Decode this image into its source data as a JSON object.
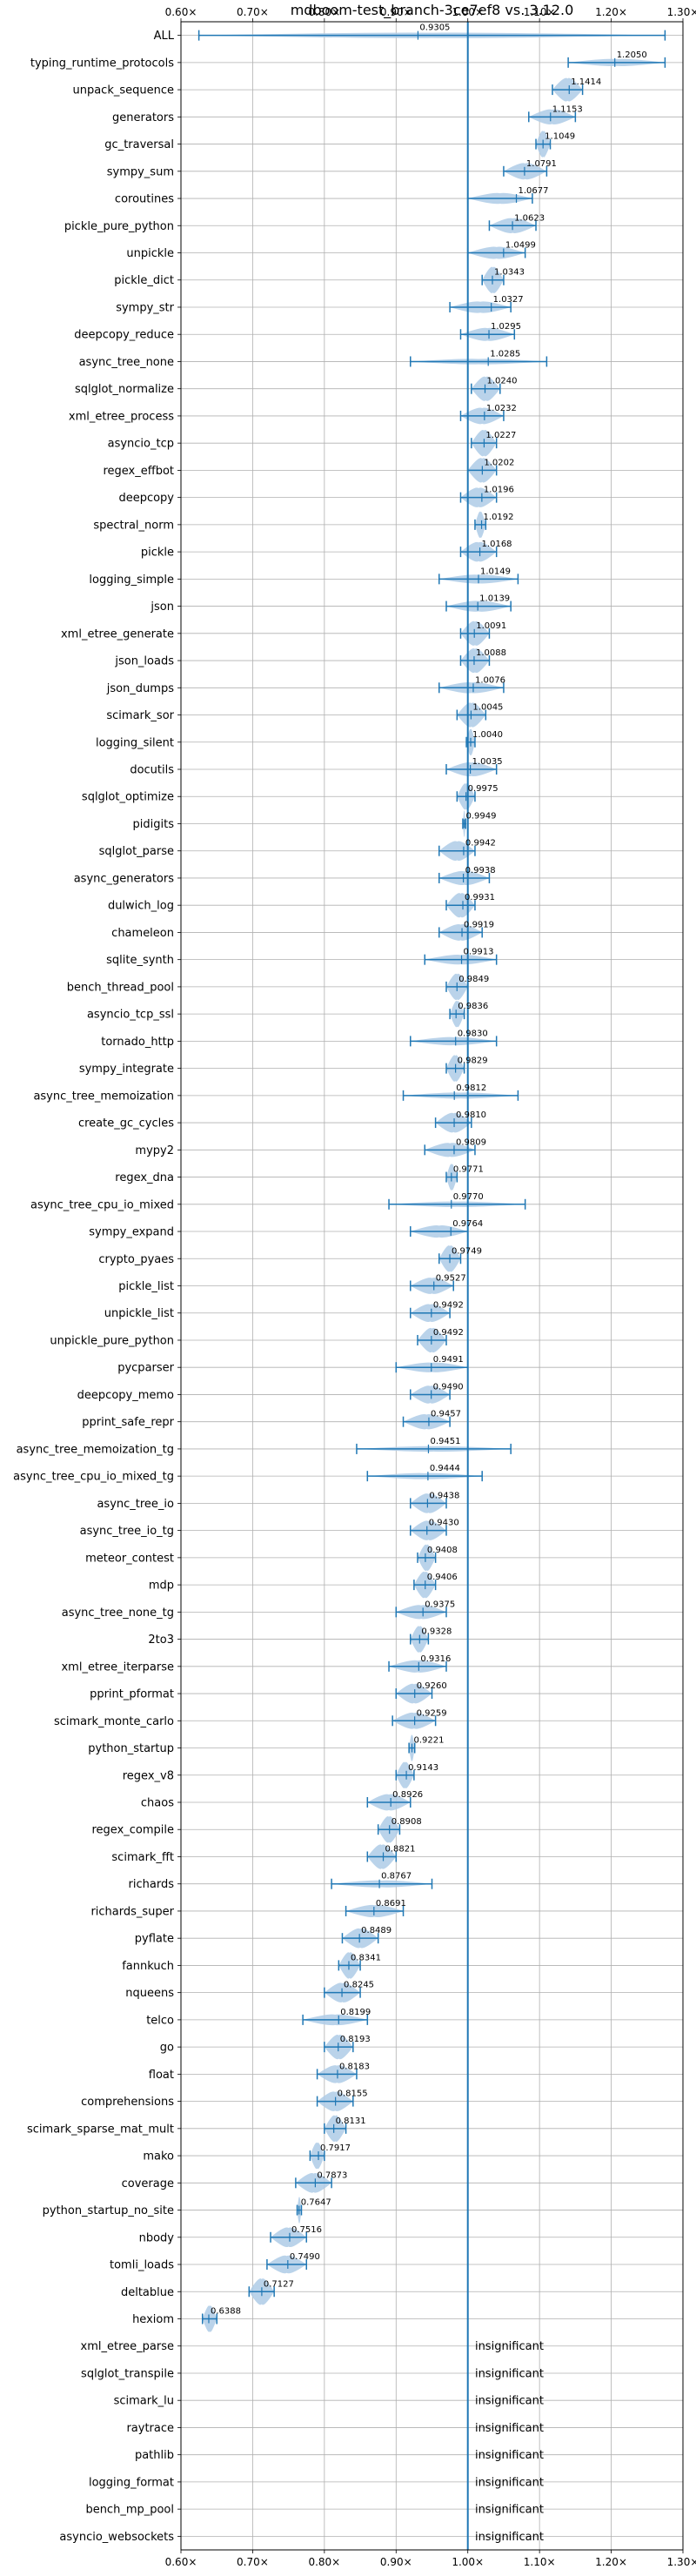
{
  "chart_data": {
    "type": "violin",
    "title": "mdboom-test_branch-3ce7ef8 vs. 3.12.0",
    "xlim": [
      0.6,
      1.3
    ],
    "xticks": [
      0.6,
      0.7,
      0.8,
      0.9,
      1.0,
      1.1,
      1.2,
      1.3
    ],
    "xtick_labels": [
      "0.60×",
      "0.70×",
      "0.80×",
      "0.90×",
      "1.00×",
      "1.10×",
      "1.20×",
      "1.30×"
    ],
    "grid": true,
    "reference_line": 1.0,
    "colors": {
      "violin": "#aecbe6",
      "line": "#1f77b4",
      "grid": "#b0b0b0"
    },
    "rows": [
      {
        "name": "ALL",
        "value": 0.9305,
        "label": "0.9305",
        "lo": 0.625,
        "hi": 1.275
      },
      {
        "name": "typing_runtime_protocols",
        "value": 1.205,
        "label": "1.2050",
        "lo": 1.14,
        "hi": 1.275
      },
      {
        "name": "unpack_sequence",
        "value": 1.1414,
        "label": "1.1414",
        "lo": 1.118,
        "hi": 1.16
      },
      {
        "name": "generators",
        "value": 1.1153,
        "label": "1.1153",
        "lo": 1.085,
        "hi": 1.15
      },
      {
        "name": "gc_traversal",
        "value": 1.1049,
        "label": "1.1049",
        "lo": 1.095,
        "hi": 1.115
      },
      {
        "name": "sympy_sum",
        "value": 1.0791,
        "label": "1.0791",
        "lo": 1.05,
        "hi": 1.11
      },
      {
        "name": "coroutines",
        "value": 1.0677,
        "label": "1.0677",
        "lo": 1.0,
        "hi": 1.09
      },
      {
        "name": "pickle_pure_python",
        "value": 1.0623,
        "label": "1.0623",
        "lo": 1.03,
        "hi": 1.095
      },
      {
        "name": "unpickle",
        "value": 1.0499,
        "label": "1.0499",
        "lo": 1.0,
        "hi": 1.08
      },
      {
        "name": "pickle_dict",
        "value": 1.0343,
        "label": "1.0343",
        "lo": 1.02,
        "hi": 1.05
      },
      {
        "name": "sympy_str",
        "value": 1.0327,
        "label": "1.0327",
        "lo": 0.975,
        "hi": 1.06
      },
      {
        "name": "deepcopy_reduce",
        "value": 1.0295,
        "label": "1.0295",
        "lo": 0.99,
        "hi": 1.065
      },
      {
        "name": "async_tree_none",
        "value": 1.0285,
        "label": "1.0285",
        "lo": 0.92,
        "hi": 1.11
      },
      {
        "name": "sqlglot_normalize",
        "value": 1.024,
        "label": "1.0240",
        "lo": 1.005,
        "hi": 1.045
      },
      {
        "name": "xml_etree_process",
        "value": 1.0232,
        "label": "1.0232",
        "lo": 0.99,
        "hi": 1.05
      },
      {
        "name": "asyncio_tcp",
        "value": 1.0227,
        "label": "1.0227",
        "lo": 1.005,
        "hi": 1.04
      },
      {
        "name": "regex_effbot",
        "value": 1.0202,
        "label": "1.0202",
        "lo": 1.0,
        "hi": 1.04
      },
      {
        "name": "deepcopy",
        "value": 1.0196,
        "label": "1.0196",
        "lo": 0.99,
        "hi": 1.04
      },
      {
        "name": "spectral_norm",
        "value": 1.0192,
        "label": "1.0192",
        "lo": 1.01,
        "hi": 1.025
      },
      {
        "name": "pickle",
        "value": 1.0168,
        "label": "1.0168",
        "lo": 0.99,
        "hi": 1.04
      },
      {
        "name": "logging_simple",
        "value": 1.0149,
        "label": "1.0149",
        "lo": 0.96,
        "hi": 1.07
      },
      {
        "name": "json",
        "value": 1.0139,
        "label": "1.0139",
        "lo": 0.97,
        "hi": 1.06
      },
      {
        "name": "xml_etree_generate",
        "value": 1.0091,
        "label": "1.0091",
        "lo": 0.99,
        "hi": 1.03
      },
      {
        "name": "json_loads",
        "value": 1.0088,
        "label": "1.0088",
        "lo": 0.99,
        "hi": 1.03
      },
      {
        "name": "json_dumps",
        "value": 1.0076,
        "label": "1.0076",
        "lo": 0.96,
        "hi": 1.05
      },
      {
        "name": "scimark_sor",
        "value": 1.0045,
        "label": "1.0045",
        "lo": 0.985,
        "hi": 1.025
      },
      {
        "name": "logging_silent",
        "value": 1.004,
        "label": "1.0040",
        "lo": 0.998,
        "hi": 1.01
      },
      {
        "name": "docutils",
        "value": 1.0035,
        "label": "1.0035",
        "lo": 0.97,
        "hi": 1.04
      },
      {
        "name": "sqlglot_optimize",
        "value": 0.9975,
        "label": "0.9975",
        "lo": 0.985,
        "hi": 1.01
      },
      {
        "name": "pidigits",
        "value": 0.9949,
        "label": "0.9949",
        "lo": 0.993,
        "hi": 0.997
      },
      {
        "name": "sqlglot_parse",
        "value": 0.9942,
        "label": "0.9942",
        "lo": 0.96,
        "hi": 1.01
      },
      {
        "name": "async_generators",
        "value": 0.9938,
        "label": "0.9938",
        "lo": 0.96,
        "hi": 1.03
      },
      {
        "name": "dulwich_log",
        "value": 0.9931,
        "label": "0.9931",
        "lo": 0.97,
        "hi": 1.01
      },
      {
        "name": "chameleon",
        "value": 0.9919,
        "label": "0.9919",
        "lo": 0.96,
        "hi": 1.02
      },
      {
        "name": "sqlite_synth",
        "value": 0.9913,
        "label": "0.9913",
        "lo": 0.94,
        "hi": 1.04
      },
      {
        "name": "bench_thread_pool",
        "value": 0.9849,
        "label": "0.9849",
        "lo": 0.97,
        "hi": 1.0
      },
      {
        "name": "asyncio_tcp_ssl",
        "value": 0.9836,
        "label": "0.9836",
        "lo": 0.975,
        "hi": 0.995
      },
      {
        "name": "tornado_http",
        "value": 0.983,
        "label": "0.9830",
        "lo": 0.92,
        "hi": 1.04
      },
      {
        "name": "sympy_integrate",
        "value": 0.9829,
        "label": "0.9829",
        "lo": 0.97,
        "hi": 0.995
      },
      {
        "name": "async_tree_memoization",
        "value": 0.9812,
        "label": "0.9812",
        "lo": 0.91,
        "hi": 1.07
      },
      {
        "name": "create_gc_cycles",
        "value": 0.981,
        "label": "0.9810",
        "lo": 0.955,
        "hi": 1.005
      },
      {
        "name": "mypy2",
        "value": 0.9809,
        "label": "0.9809",
        "lo": 0.94,
        "hi": 1.01
      },
      {
        "name": "regex_dna",
        "value": 0.9771,
        "label": "0.9771",
        "lo": 0.97,
        "hi": 0.985
      },
      {
        "name": "async_tree_cpu_io_mixed",
        "value": 0.977,
        "label": "0.9770",
        "lo": 0.89,
        "hi": 1.08
      },
      {
        "name": "sympy_expand",
        "value": 0.9764,
        "label": "0.9764",
        "lo": 0.92,
        "hi": 1.0
      },
      {
        "name": "crypto_pyaes",
        "value": 0.9749,
        "label": "0.9749",
        "lo": 0.96,
        "hi": 0.99
      },
      {
        "name": "pickle_list",
        "value": 0.9527,
        "label": "0.9527",
        "lo": 0.92,
        "hi": 0.98
      },
      {
        "name": "unpickle_list",
        "value": 0.9492,
        "label": "0.9492",
        "lo": 0.92,
        "hi": 0.975
      },
      {
        "name": "unpickle_pure_python",
        "value": 0.9492,
        "label": "0.9492",
        "lo": 0.93,
        "hi": 0.97
      },
      {
        "name": "pycparser",
        "value": 0.9491,
        "label": "0.9491",
        "lo": 0.9,
        "hi": 1.0
      },
      {
        "name": "deepcopy_memo",
        "value": 0.949,
        "label": "0.9490",
        "lo": 0.92,
        "hi": 0.975
      },
      {
        "name": "pprint_safe_repr",
        "value": 0.9457,
        "label": "0.9457",
        "lo": 0.91,
        "hi": 0.975
      },
      {
        "name": "async_tree_memoization_tg",
        "value": 0.9451,
        "label": "0.9451",
        "lo": 0.845,
        "hi": 1.06
      },
      {
        "name": "async_tree_cpu_io_mixed_tg",
        "value": 0.9444,
        "label": "0.9444",
        "lo": 0.86,
        "hi": 1.02
      },
      {
        "name": "async_tree_io",
        "value": 0.9438,
        "label": "0.9438",
        "lo": 0.92,
        "hi": 0.97
      },
      {
        "name": "async_tree_io_tg",
        "value": 0.943,
        "label": "0.9430",
        "lo": 0.92,
        "hi": 0.97
      },
      {
        "name": "meteor_contest",
        "value": 0.9408,
        "label": "0.9408",
        "lo": 0.93,
        "hi": 0.955
      },
      {
        "name": "mdp",
        "value": 0.9406,
        "label": "0.9406",
        "lo": 0.925,
        "hi": 0.955
      },
      {
        "name": "async_tree_none_tg",
        "value": 0.9375,
        "label": "0.9375",
        "lo": 0.9,
        "hi": 0.97
      },
      {
        "name": "2to3",
        "value": 0.9328,
        "label": "0.9328",
        "lo": 0.92,
        "hi": 0.945
      },
      {
        "name": "xml_etree_iterparse",
        "value": 0.9316,
        "label": "0.9316",
        "lo": 0.89,
        "hi": 0.97
      },
      {
        "name": "pprint_pformat",
        "value": 0.926,
        "label": "0.9260",
        "lo": 0.9,
        "hi": 0.95
      },
      {
        "name": "scimark_monte_carlo",
        "value": 0.9259,
        "label": "0.9259",
        "lo": 0.895,
        "hi": 0.955
      },
      {
        "name": "python_startup",
        "value": 0.9221,
        "label": "0.9221",
        "lo": 0.918,
        "hi": 0.926
      },
      {
        "name": "regex_v8",
        "value": 0.9143,
        "label": "0.9143",
        "lo": 0.9,
        "hi": 0.925
      },
      {
        "name": "chaos",
        "value": 0.8926,
        "label": "0.8926",
        "lo": 0.86,
        "hi": 0.92
      },
      {
        "name": "regex_compile",
        "value": 0.8908,
        "label": "0.8908",
        "lo": 0.875,
        "hi": 0.905
      },
      {
        "name": "scimark_fft",
        "value": 0.8821,
        "label": "0.8821",
        "lo": 0.86,
        "hi": 0.9
      },
      {
        "name": "richards",
        "value": 0.8767,
        "label": "0.8767",
        "lo": 0.81,
        "hi": 0.95
      },
      {
        "name": "richards_super",
        "value": 0.8691,
        "label": "0.8691",
        "lo": 0.83,
        "hi": 0.91
      },
      {
        "name": "pyflate",
        "value": 0.8489,
        "label": "0.8489",
        "lo": 0.825,
        "hi": 0.875
      },
      {
        "name": "fannkuch",
        "value": 0.8341,
        "label": "0.8341",
        "lo": 0.82,
        "hi": 0.85
      },
      {
        "name": "nqueens",
        "value": 0.8245,
        "label": "0.8245",
        "lo": 0.8,
        "hi": 0.85
      },
      {
        "name": "telco",
        "value": 0.8199,
        "label": "0.8199",
        "lo": 0.77,
        "hi": 0.86
      },
      {
        "name": "go",
        "value": 0.8193,
        "label": "0.8193",
        "lo": 0.8,
        "hi": 0.84
      },
      {
        "name": "float",
        "value": 0.8183,
        "label": "0.8183",
        "lo": 0.79,
        "hi": 0.845
      },
      {
        "name": "comprehensions",
        "value": 0.8155,
        "label": "0.8155",
        "lo": 0.79,
        "hi": 0.84
      },
      {
        "name": "scimark_sparse_mat_mult",
        "value": 0.8131,
        "label": "0.8131",
        "lo": 0.8,
        "hi": 0.83
      },
      {
        "name": "mako",
        "value": 0.7917,
        "label": "0.7917",
        "lo": 0.78,
        "hi": 0.8
      },
      {
        "name": "coverage",
        "value": 0.7873,
        "label": "0.7873",
        "lo": 0.76,
        "hi": 0.81
      },
      {
        "name": "python_startup_no_site",
        "value": 0.7647,
        "label": "0.7647",
        "lo": 0.762,
        "hi": 0.768
      },
      {
        "name": "nbody",
        "value": 0.7516,
        "label": "0.7516",
        "lo": 0.725,
        "hi": 0.775
      },
      {
        "name": "tomli_loads",
        "value": 0.749,
        "label": "0.7490",
        "lo": 0.72,
        "hi": 0.775
      },
      {
        "name": "deltablue",
        "value": 0.7127,
        "label": "0.7127",
        "lo": 0.695,
        "hi": 0.73
      },
      {
        "name": "hexiom",
        "value": 0.6388,
        "label": "0.6388",
        "lo": 0.63,
        "hi": 0.65
      },
      {
        "name": "xml_etree_parse",
        "value": null,
        "label": "insignificant"
      },
      {
        "name": "sqlglot_transpile",
        "value": null,
        "label": "insignificant"
      },
      {
        "name": "scimark_lu",
        "value": null,
        "label": "insignificant"
      },
      {
        "name": "raytrace",
        "value": null,
        "label": "insignificant"
      },
      {
        "name": "pathlib",
        "value": null,
        "label": "insignificant"
      },
      {
        "name": "logging_format",
        "value": null,
        "label": "insignificant"
      },
      {
        "name": "bench_mp_pool",
        "value": null,
        "label": "insignificant"
      },
      {
        "name": "asyncio_websockets",
        "value": null,
        "label": "insignificant"
      }
    ]
  }
}
